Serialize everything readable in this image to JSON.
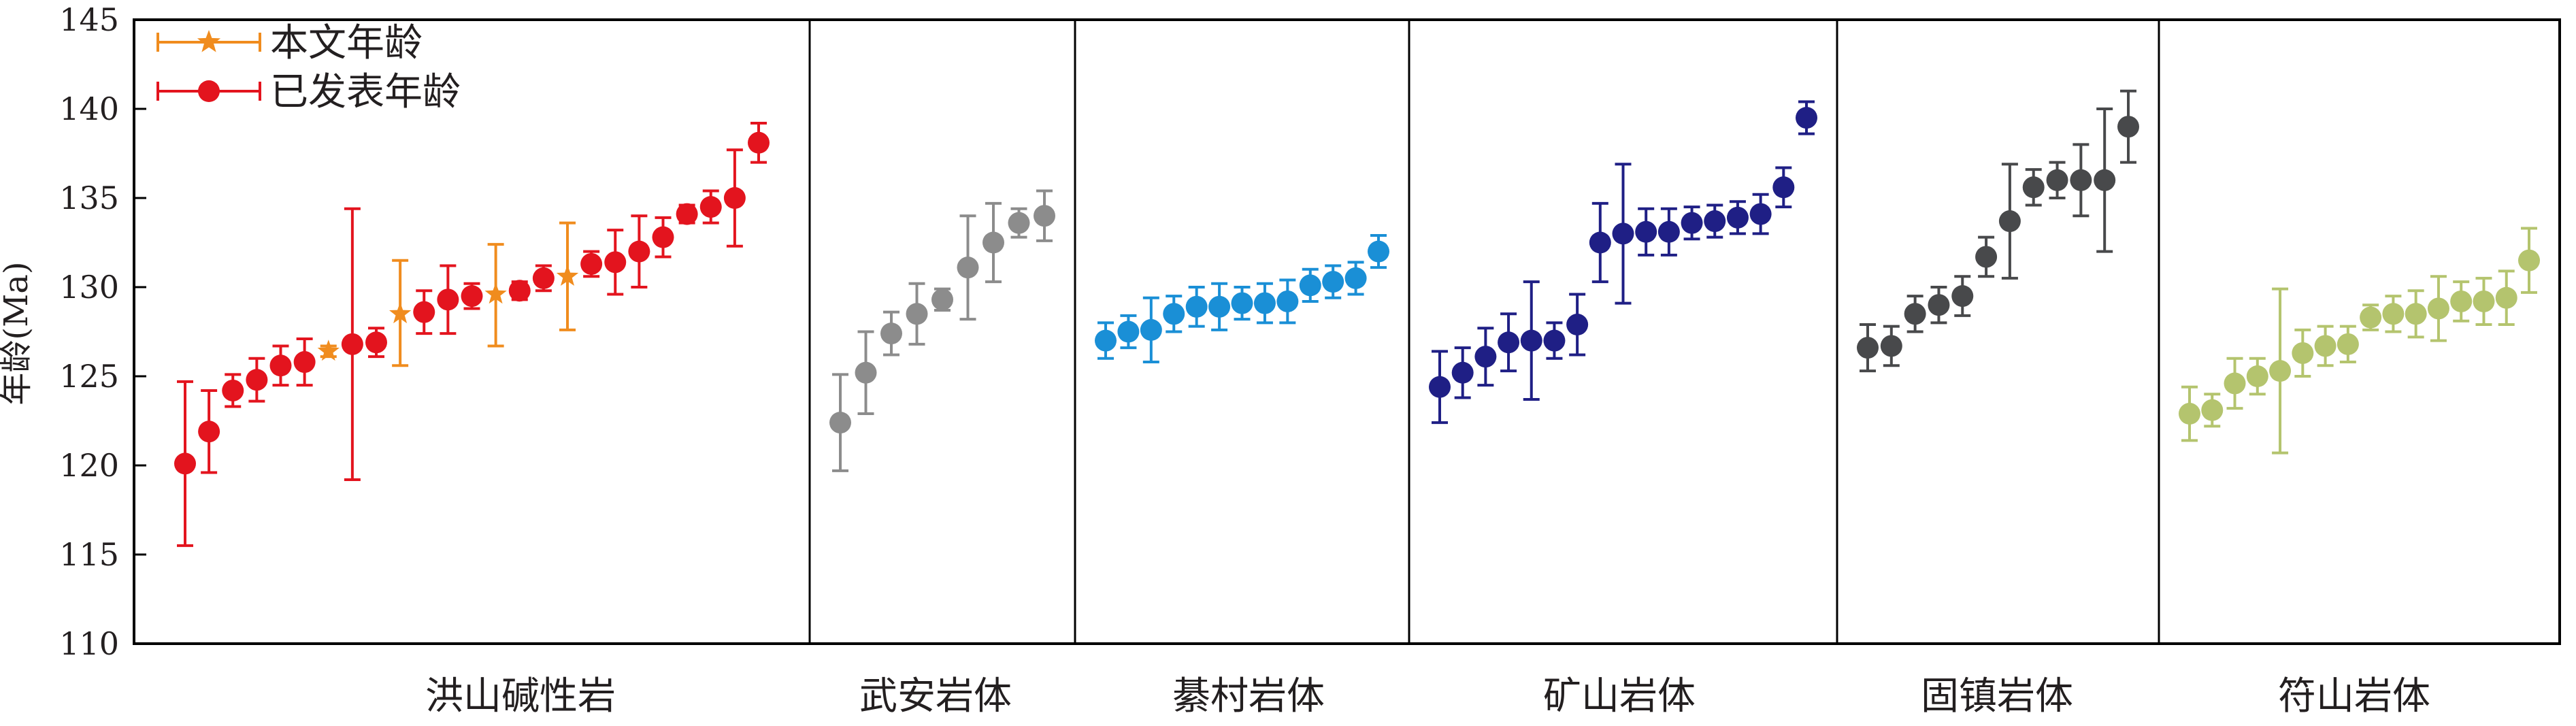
{
  "chart_data": {
    "type": "scatter",
    "title": "",
    "xlabel": "",
    "ylabel": "年龄(Ma)",
    "ylim": [
      110,
      145
    ],
    "yticks": [
      110,
      115,
      120,
      125,
      130,
      135,
      140,
      145
    ],
    "legend": {
      "placement": "top-left",
      "items": [
        {
          "label": "本文年龄",
          "marker": "star",
          "color": "#f08c1e"
        },
        {
          "label": "已发表年龄",
          "marker": "circle",
          "color": "#e3141e"
        }
      ]
    },
    "panels": [
      {
        "name": "洪山碱性岩",
        "color": "#e3141e",
        "points": [
          {
            "y": 120.1,
            "lo": 115.5,
            "hi": 124.7
          },
          {
            "y": 121.9,
            "lo": 119.6,
            "hi": 124.2
          },
          {
            "y": 124.2,
            "lo": 123.3,
            "hi": 125.1
          },
          {
            "y": 124.8,
            "lo": 123.6,
            "hi": 126.0
          },
          {
            "y": 125.6,
            "lo": 124.5,
            "hi": 126.7
          },
          {
            "y": 125.8,
            "lo": 124.5,
            "hi": 127.1
          },
          {
            "y": 126.4,
            "lo": 126.1,
            "hi": 126.7,
            "star": true
          },
          {
            "y": 126.8,
            "lo": 119.2,
            "hi": 134.4
          },
          {
            "y": 126.9,
            "lo": 126.1,
            "hi": 127.7
          },
          {
            "y": 128.5,
            "lo": 125.6,
            "hi": 131.5,
            "star": true
          },
          {
            "y": 128.6,
            "lo": 127.4,
            "hi": 129.8
          },
          {
            "y": 129.3,
            "lo": 127.4,
            "hi": 131.2
          },
          {
            "y": 129.5,
            "lo": 128.8,
            "hi": 130.2
          },
          {
            "y": 129.6,
            "lo": 126.7,
            "hi": 132.4,
            "star": true
          },
          {
            "y": 129.8,
            "lo": 129.3,
            "hi": 130.3
          },
          {
            "y": 130.5,
            "lo": 129.8,
            "hi": 131.2
          },
          {
            "y": 130.6,
            "lo": 127.6,
            "hi": 133.6,
            "star": true
          },
          {
            "y": 131.3,
            "lo": 130.6,
            "hi": 132.0
          },
          {
            "y": 131.4,
            "lo": 129.6,
            "hi": 133.2
          },
          {
            "y": 132.0,
            "lo": 130.0,
            "hi": 134.0
          },
          {
            "y": 132.8,
            "lo": 131.7,
            "hi": 133.9
          },
          {
            "y": 134.1,
            "lo": 133.6,
            "hi": 134.6
          },
          {
            "y": 134.5,
            "lo": 133.6,
            "hi": 135.4
          },
          {
            "y": 135.0,
            "lo": 132.3,
            "hi": 137.7
          },
          {
            "y": 138.1,
            "lo": 137.0,
            "hi": 139.2
          }
        ]
      },
      {
        "name": "武安岩体",
        "color": "#8c8c8c",
        "points": [
          {
            "y": 122.4,
            "lo": 119.7,
            "hi": 125.1
          },
          {
            "y": 125.2,
            "lo": 122.9,
            "hi": 127.5
          },
          {
            "y": 127.4,
            "lo": 126.2,
            "hi": 128.6
          },
          {
            "y": 128.5,
            "lo": 126.8,
            "hi": 130.2
          },
          {
            "y": 129.3,
            "lo": 128.7,
            "hi": 129.9
          },
          {
            "y": 131.1,
            "lo": 128.2,
            "hi": 134.0
          },
          {
            "y": 132.5,
            "lo": 130.3,
            "hi": 134.7
          },
          {
            "y": 133.6,
            "lo": 132.8,
            "hi": 134.4
          },
          {
            "y": 134.0,
            "lo": 132.6,
            "hi": 135.4
          }
        ]
      },
      {
        "name": "綦村岩体",
        "color": "#1a8fd6",
        "points": [
          {
            "y": 127.0,
            "lo": 126.0,
            "hi": 128.0
          },
          {
            "y": 127.5,
            "lo": 126.6,
            "hi": 128.4
          },
          {
            "y": 127.6,
            "lo": 125.8,
            "hi": 129.4
          },
          {
            "y": 128.5,
            "lo": 127.5,
            "hi": 129.5
          },
          {
            "y": 128.9,
            "lo": 127.8,
            "hi": 130.0
          },
          {
            "y": 128.9,
            "lo": 127.6,
            "hi": 130.2
          },
          {
            "y": 129.1,
            "lo": 128.2,
            "hi": 130.0
          },
          {
            "y": 129.1,
            "lo": 128.0,
            "hi": 130.2
          },
          {
            "y": 129.2,
            "lo": 128.0,
            "hi": 130.4
          },
          {
            "y": 130.1,
            "lo": 129.2,
            "hi": 131.0
          },
          {
            "y": 130.3,
            "lo": 129.4,
            "hi": 131.2
          },
          {
            "y": 130.5,
            "lo": 129.6,
            "hi": 131.4
          },
          {
            "y": 132.0,
            "lo": 131.1,
            "hi": 132.9
          }
        ]
      },
      {
        "name": "矿山岩体",
        "color": "#1f1f85",
        "points": [
          {
            "y": 124.4,
            "lo": 122.4,
            "hi": 126.4
          },
          {
            "y": 125.2,
            "lo": 123.8,
            "hi": 126.6
          },
          {
            "y": 126.1,
            "lo": 124.5,
            "hi": 127.7
          },
          {
            "y": 126.9,
            "lo": 125.3,
            "hi": 128.5
          },
          {
            "y": 127.0,
            "lo": 123.7,
            "hi": 130.3
          },
          {
            "y": 127.0,
            "lo": 126.0,
            "hi": 128.0
          },
          {
            "y": 127.9,
            "lo": 126.2,
            "hi": 129.6
          },
          {
            "y": 132.5,
            "lo": 130.3,
            "hi": 134.7
          },
          {
            "y": 133.0,
            "lo": 129.1,
            "hi": 136.9
          },
          {
            "y": 133.1,
            "lo": 131.8,
            "hi": 134.4
          },
          {
            "y": 133.1,
            "lo": 131.8,
            "hi": 134.4
          },
          {
            "y": 133.6,
            "lo": 132.7,
            "hi": 134.5
          },
          {
            "y": 133.7,
            "lo": 132.8,
            "hi": 134.6
          },
          {
            "y": 133.9,
            "lo": 133.0,
            "hi": 134.8
          },
          {
            "y": 134.1,
            "lo": 133.0,
            "hi": 135.2
          },
          {
            "y": 135.6,
            "lo": 134.5,
            "hi": 136.7
          },
          {
            "y": 139.5,
            "lo": 138.6,
            "hi": 140.4
          }
        ]
      },
      {
        "name": "固镇岩体",
        "color": "#48494b",
        "points": [
          {
            "y": 126.6,
            "lo": 125.3,
            "hi": 127.9
          },
          {
            "y": 126.7,
            "lo": 125.6,
            "hi": 127.8
          },
          {
            "y": 128.5,
            "lo": 127.5,
            "hi": 129.5
          },
          {
            "y": 129.0,
            "lo": 128.0,
            "hi": 130.0
          },
          {
            "y": 129.5,
            "lo": 128.4,
            "hi": 130.6
          },
          {
            "y": 131.7,
            "lo": 130.6,
            "hi": 132.8
          },
          {
            "y": 133.7,
            "lo": 130.5,
            "hi": 136.9
          },
          {
            "y": 135.6,
            "lo": 134.6,
            "hi": 136.6
          },
          {
            "y": 136.0,
            "lo": 135.0,
            "hi": 137.0
          },
          {
            "y": 136.0,
            "lo": 134.0,
            "hi": 138.0
          },
          {
            "y": 136.0,
            "lo": 132.0,
            "hi": 140.0
          },
          {
            "y": 139.0,
            "lo": 137.0,
            "hi": 141.0
          }
        ]
      },
      {
        "name": "符山岩体",
        "color": "#b4c46e",
        "points": [
          {
            "y": 122.9,
            "lo": 121.4,
            "hi": 124.4
          },
          {
            "y": 123.1,
            "lo": 122.2,
            "hi": 124.0
          },
          {
            "y": 124.6,
            "lo": 123.2,
            "hi": 126.0
          },
          {
            "y": 125.0,
            "lo": 124.0,
            "hi": 126.0
          },
          {
            "y": 125.3,
            "lo": 120.7,
            "hi": 129.9
          },
          {
            "y": 126.3,
            "lo": 125.0,
            "hi": 127.6
          },
          {
            "y": 126.7,
            "lo": 125.6,
            "hi": 127.8
          },
          {
            "y": 126.8,
            "lo": 125.8,
            "hi": 127.8
          },
          {
            "y": 128.3,
            "lo": 127.6,
            "hi": 129.0
          },
          {
            "y": 128.5,
            "lo": 127.5,
            "hi": 129.5
          },
          {
            "y": 128.5,
            "lo": 127.2,
            "hi": 129.8
          },
          {
            "y": 128.8,
            "lo": 127.0,
            "hi": 130.6
          },
          {
            "y": 129.2,
            "lo": 128.1,
            "hi": 130.3
          },
          {
            "y": 129.2,
            "lo": 127.9,
            "hi": 130.5
          },
          {
            "y": 129.4,
            "lo": 127.9,
            "hi": 130.9
          },
          {
            "y": 131.5,
            "lo": 129.7,
            "hi": 133.3
          }
        ]
      }
    ]
  }
}
